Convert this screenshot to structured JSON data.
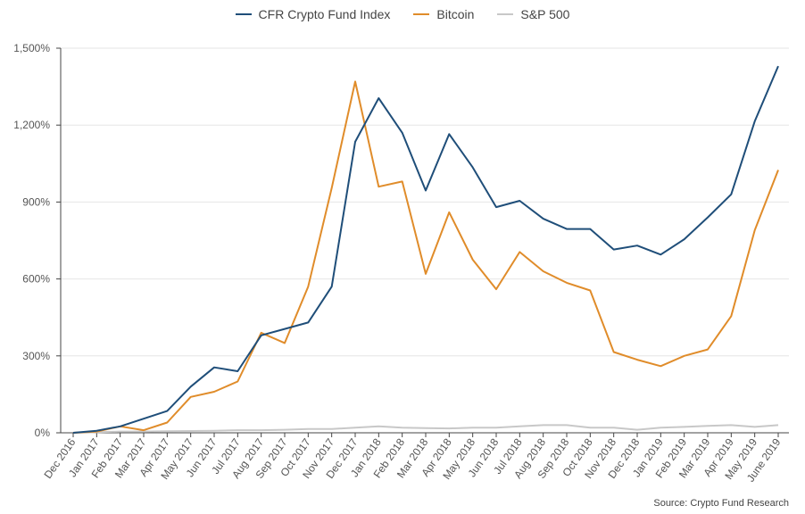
{
  "chart_data": {
    "type": "line",
    "categories": [
      "Dec 2016",
      "Jan 2017",
      "Feb 2017",
      "Mar 2017",
      "Apr 2017",
      "May 2017",
      "Jun 2017",
      "Jul 2017",
      "Aug 2017",
      "Sep 2017",
      "Oct 2017",
      "Nov 2017",
      "Dec 2017",
      "Jan 2018",
      "Feb 2018",
      "Mar 2018",
      "Apr 2018",
      "May 2018",
      "Jun 2018",
      "Jul 2018",
      "Aug 2018",
      "Sep 2018",
      "Oct 2018",
      "Nov 2018",
      "Dec 2018",
      "Jan 2019",
      "Feb 2019",
      "Mar 2019",
      "Apr 2019",
      "May 2019",
      "June 2019"
    ],
    "series": [
      {
        "name": "CFR Crypto Fund Index",
        "color": "#1f4e79",
        "values": [
          0,
          8,
          25,
          55,
          85,
          180,
          255,
          240,
          380,
          405,
          430,
          570,
          1135,
          1305,
          1170,
          945,
          1165,
          1035,
          880,
          905,
          835,
          795,
          795,
          715,
          730,
          695,
          755,
          840,
          930,
          1215,
          1430
        ]
      },
      {
        "name": "Bitcoin",
        "color": "#e08c2a",
        "values": [
          0,
          5,
          25,
          10,
          40,
          140,
          160,
          200,
          390,
          350,
          570,
          955,
          1370,
          960,
          980,
          620,
          860,
          675,
          560,
          705,
          630,
          585,
          555,
          315,
          285,
          260,
          300,
          325,
          455,
          790,
          1025
        ]
      },
      {
        "name": "S&P 500",
        "color": "#c8c8c8",
        "values": [
          0,
          2,
          5,
          5,
          6,
          7,
          8,
          10,
          10,
          12,
          15,
          15,
          20,
          25,
          20,
          18,
          17,
          20,
          20,
          25,
          30,
          30,
          20,
          20,
          12,
          20,
          23,
          27,
          30,
          23,
          30
        ]
      }
    ],
    "yticks": [
      0,
      300,
      600,
      900,
      1200,
      1500
    ],
    "ytick_labels": [
      "0%",
      "300%",
      "600%",
      "900%",
      "1,200%",
      "1,500%"
    ],
    "ylim": [
      0,
      1500
    ],
    "grid": true,
    "legend_position": "top-center"
  },
  "legend": {
    "items": [
      {
        "label": "CFR Crypto Fund Index",
        "color": "#1f4e79"
      },
      {
        "label": "Bitcoin",
        "color": "#e08c2a"
      },
      {
        "label": "S&P 500",
        "color": "#c8c8c8"
      }
    ]
  },
  "source_note": "Source: Crypto Fund Research"
}
